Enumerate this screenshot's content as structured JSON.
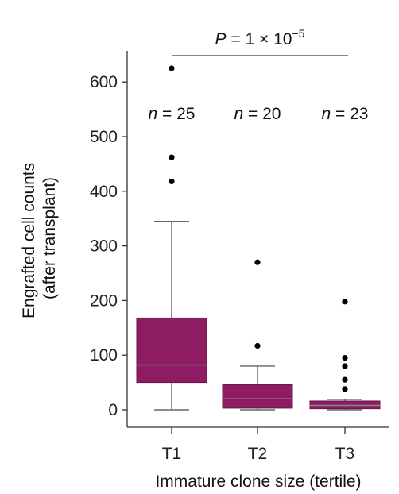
{
  "chart_data": {
    "type": "box",
    "categories": [
      "T1",
      "T2",
      "T3"
    ],
    "xlabel": "Immature clone size (tertile)",
    "ylabel": [
      "Engrafted cell counts",
      "(after transplant)"
    ],
    "ylim": [
      0,
      650
    ],
    "yticks": [
      0,
      100,
      200,
      300,
      400,
      500,
      600
    ],
    "box_color": "#8e1c62",
    "boxes": [
      {
        "category": "T1",
        "n_label": "n = 25",
        "min": 0,
        "q1": 50,
        "median": 82,
        "q3": 168,
        "max": 345,
        "outliers": [
          418,
          462,
          625
        ]
      },
      {
        "category": "T2",
        "n_label": "n = 20",
        "min": 0,
        "q1": 3,
        "median": 20,
        "q3": 46,
        "max": 80,
        "outliers": [
          117,
          270
        ]
      },
      {
        "category": "T3",
        "n_label": "n = 23",
        "min": 0,
        "q1": 2,
        "median": 8,
        "q3": 16,
        "max": 19,
        "outliers": [
          38,
          55,
          80,
          95,
          198
        ]
      }
    ],
    "annotation": {
      "text_main": "P = 1 × 10",
      "text_exp": "−5",
      "from": "T1",
      "to": "T3"
    }
  }
}
